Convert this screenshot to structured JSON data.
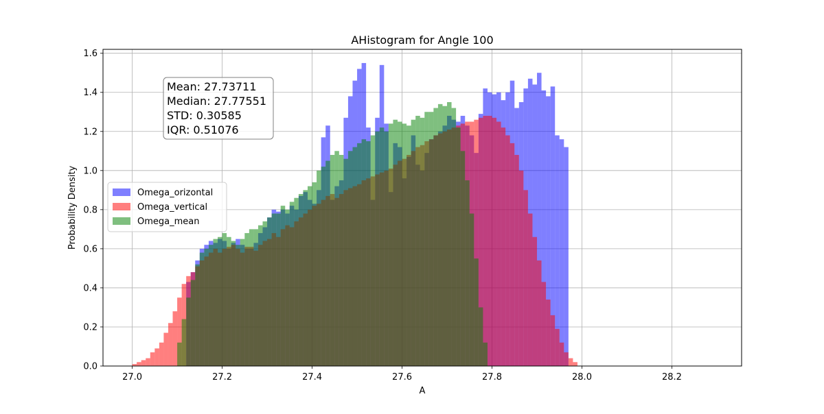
{
  "chart_data": {
    "type": "bar",
    "title": "AHistogram for Angle 100",
    "xlabel": "A",
    "ylabel": "Probability Density",
    "xlim": [
      26.935,
      28.355
    ],
    "ylim": [
      0.0,
      1.62
    ],
    "xticks": [
      "27.0",
      "27.2",
      "27.4",
      "27.6",
      "27.8",
      "28.0",
      "28.2"
    ],
    "yticks": [
      "0.0",
      "0.2",
      "0.4",
      "0.6",
      "0.8",
      "1.0",
      "1.2",
      "1.4",
      "1.6"
    ],
    "grid": true,
    "legend_position": "center-left",
    "stats": [
      "Mean: 27.73711",
      "Median: 27.77551",
      "STD: 0.30585",
      "IQR: 0.51076"
    ],
    "series": [
      {
        "name": "Omega_orizontal",
        "color": "#0000ff",
        "opacity": 0.5,
        "bin_start": 27.12,
        "bin_width": 0.01,
        "values": [
          0.43,
          0.48,
          0.54,
          0.6,
          0.62,
          0.64,
          0.63,
          0.65,
          0.64,
          0.6,
          0.63,
          0.65,
          0.62,
          0.6,
          0.6,
          0.63,
          0.68,
          0.71,
          0.76,
          0.8,
          0.79,
          0.8,
          0.78,
          0.82,
          0.8,
          0.87,
          0.89,
          0.85,
          0.83,
          0.9,
          1.17,
          1.23,
          0.85,
          0.92,
          0.95,
          1.27,
          1.38,
          1.46,
          1.52,
          1.55,
          1.22,
          0.85,
          1.27,
          1.54,
          1.24,
          0.89,
          1.14,
          1.12,
          0.96,
          1.07,
          1.18,
          1.03,
          1.0,
          1.09,
          1.16,
          1.18,
          1.2,
          1.23,
          1.28,
          1.26,
          1.25,
          1.28,
          1.23,
          1.18,
          1.09,
          1.29,
          1.42,
          1.4,
          1.39,
          1.4,
          1.36,
          1.4,
          1.46,
          1.32,
          1.35,
          1.42,
          1.47,
          1.44,
          1.5,
          1.41,
          1.38,
          1.43,
          1.18,
          1.16,
          1.12
        ]
      },
      {
        "name": "Omega_vertical",
        "color": "#ff0000",
        "opacity": 0.5,
        "bin_start": 27.0,
        "bin_width": 0.01,
        "values": [
          0.01,
          0.02,
          0.03,
          0.04,
          0.07,
          0.09,
          0.12,
          0.17,
          0.22,
          0.28,
          0.35,
          0.42,
          0.46,
          0.48,
          0.51,
          0.54,
          0.56,
          0.58,
          0.6,
          0.58,
          0.6,
          0.61,
          0.62,
          0.6,
          0.58,
          0.61,
          0.61,
          0.59,
          0.62,
          0.64,
          0.65,
          0.68,
          0.66,
          0.7,
          0.72,
          0.71,
          0.74,
          0.76,
          0.78,
          0.8,
          0.82,
          0.83,
          0.85,
          0.87,
          0.88,
          0.86,
          0.88,
          0.9,
          0.91,
          0.92,
          0.93,
          0.95,
          0.96,
          0.97,
          0.98,
          0.99,
          1.0,
          1.01,
          1.03,
          1.05,
          1.06,
          1.08,
          1.1,
          1.12,
          1.13,
          1.15,
          1.16,
          1.18,
          1.19,
          1.2,
          1.21,
          1.22,
          1.23,
          1.24,
          1.25,
          1.25,
          1.26,
          1.27,
          1.28,
          1.28,
          1.27,
          1.25,
          1.22,
          1.18,
          1.14,
          1.08,
          1.0,
          0.9,
          0.78,
          0.66,
          0.54,
          0.43,
          0.34,
          0.26,
          0.19,
          0.12,
          0.07,
          0.04,
          0.02
        ]
      },
      {
        "name": "Omega_mean",
        "color": "#008000",
        "opacity": 0.5,
        "bin_start": 27.1,
        "bin_width": 0.01,
        "values": [
          0.12,
          0.24,
          0.35,
          0.44,
          0.52,
          0.58,
          0.6,
          0.62,
          0.65,
          0.66,
          0.68,
          0.66,
          0.64,
          0.62,
          0.65,
          0.68,
          0.7,
          0.7,
          0.72,
          0.74,
          0.76,
          0.78,
          0.78,
          0.82,
          0.8,
          0.84,
          0.86,
          0.88,
          0.9,
          0.92,
          0.94,
          1.0,
          1.02,
          1.05,
          1.08,
          1.1,
          1.08,
          1.06,
          1.1,
          1.12,
          1.14,
          1.16,
          1.15,
          1.18,
          1.2,
          1.22,
          1.2,
          1.24,
          1.26,
          1.25,
          1.24,
          1.23,
          1.26,
          1.28,
          1.27,
          1.3,
          1.3,
          1.32,
          1.34,
          1.33,
          1.35,
          1.32,
          1.22,
          1.1,
          0.95,
          0.78,
          0.55,
          0.3,
          0.12
        ]
      }
    ]
  }
}
